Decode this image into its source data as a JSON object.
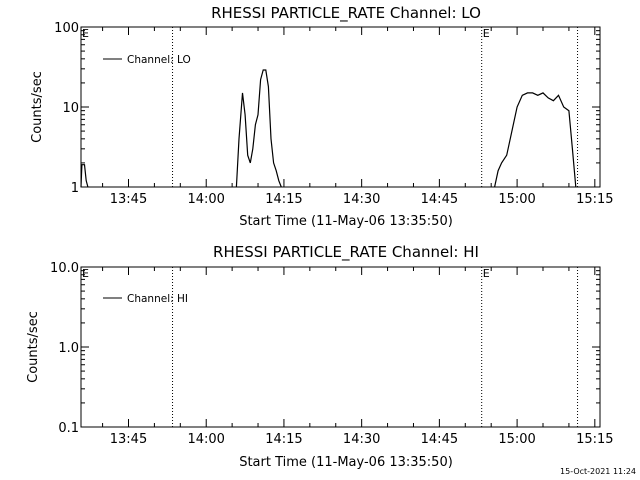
{
  "footer_timestamp": "15-Oct-2021 11:24",
  "chart_data": [
    {
      "type": "line",
      "title": "RHESSI PARTICLE_RATE Channel: LO",
      "xlabel": "Start Time (11-May-06 13:35:50)",
      "ylabel": "Counts/sec",
      "yscale": "log",
      "xlim": [
        "13:35:50",
        "15:16:00"
      ],
      "ylim": [
        1,
        100
      ],
      "xticks": [
        "13:45",
        "14:00",
        "14:15",
        "14:30",
        "14:45",
        "15:00",
        "15:15"
      ],
      "yticks": [
        "1",
        "10",
        "100"
      ],
      "legend": {
        "entries": [
          "Channel: LO"
        ],
        "location": "top-left"
      },
      "event_lines": [
        {
          "time": "13:53:30",
          "marker": ""
        },
        {
          "time": "14:53:10",
          "marker": "E"
        },
        {
          "time": "15:11:40",
          "marker": ""
        }
      ],
      "left_edge_marker": "E",
      "series": [
        {
          "name": "Channel: LO",
          "segments": [
            {
              "x": [
                "13:35:50",
                "13:36:00",
                "13:36:30",
                "13:36:50",
                "13:37:10"
              ],
              "y": [
                1,
                1.9,
                1.9,
                1.2,
                1
              ]
            },
            {
              "x": [
                "14:05:50",
                "14:06:20",
                "14:07:00",
                "14:07:30",
                "14:08:00",
                "14:08:30",
                "14:09:00",
                "14:09:30",
                "14:10:00",
                "14:10:30",
                "14:11:00",
                "14:11:30",
                "14:12:00",
                "14:12:30",
                "14:13:00",
                "14:13:30",
                "14:14:00",
                "14:14:30"
              ],
              "y": [
                1,
                4,
                15,
                8,
                2.5,
                2,
                3,
                6,
                8,
                22,
                29,
                29,
                18,
                4,
                2,
                1.6,
                1.2,
                1
              ]
            },
            {
              "x": [
                "14:55:40",
                "14:56:20",
                "14:57:00",
                "14:58:00",
                "14:59:00",
                "15:00:00",
                "15:01:00",
                "15:02:00",
                "15:03:00",
                "15:04:00",
                "15:05:00",
                "15:06:00",
                "15:07:00",
                "15:08:00",
                "15:09:00",
                "15:10:00",
                "15:10:40",
                "15:11:20"
              ],
              "y": [
                1,
                1.6,
                2,
                2.5,
                5,
                10,
                14,
                15,
                15,
                14,
                15,
                13,
                12,
                14,
                10,
                9,
                3,
                1
              ]
            }
          ]
        }
      ]
    },
    {
      "type": "line",
      "title": "RHESSI PARTICLE_RATE Channel: HI",
      "xlabel": "Start Time (11-May-06 13:35:50)",
      "ylabel": "Counts/sec",
      "yscale": "log",
      "xlim": [
        "13:35:50",
        "15:16:00"
      ],
      "ylim": [
        0.1,
        10
      ],
      "xticks": [
        "13:45",
        "14:00",
        "14:15",
        "14:30",
        "14:45",
        "15:00",
        "15:15"
      ],
      "yticks": [
        "0.1",
        "1.0",
        "10.0"
      ],
      "legend": {
        "entries": [
          "Channel: HI"
        ],
        "location": "top-left"
      },
      "event_lines": [
        {
          "time": "13:53:30",
          "marker": ""
        },
        {
          "time": "14:53:10",
          "marker": "E"
        },
        {
          "time": "15:11:40",
          "marker": ""
        }
      ],
      "left_edge_marker": "E",
      "series": [
        {
          "name": "Channel: HI",
          "segments": []
        }
      ]
    }
  ]
}
